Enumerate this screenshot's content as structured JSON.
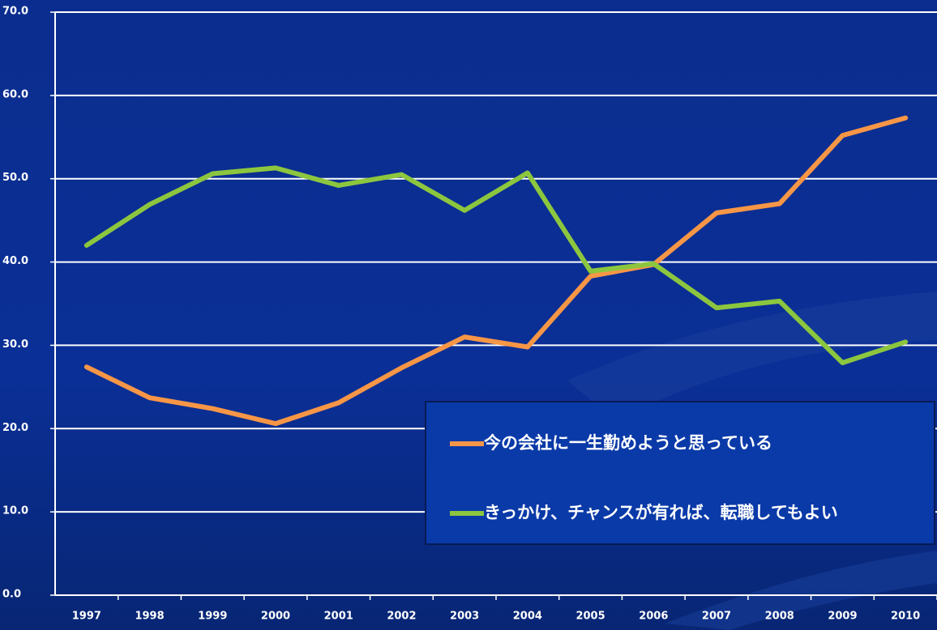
{
  "chart_data": {
    "type": "line",
    "categories": [
      "1997",
      "1998",
      "1999",
      "2000",
      "2001",
      "2002",
      "2003",
      "2004",
      "2005",
      "2006",
      "2007",
      "2008",
      "2009",
      "2010"
    ],
    "series": [
      {
        "name": "今の会社に一生勤めようと思っている",
        "color": "#f79646",
        "values": [
          27.4,
          23.7,
          22.4,
          20.6,
          23.1,
          27.3,
          31.0,
          29.8,
          38.3,
          39.7,
          45.9,
          47.0,
          55.2,
          57.3
        ]
      },
      {
        "name": "きっかけ、チャンスが有れば、転職してもよい",
        "color": "#8cc63f",
        "values": [
          42.0,
          46.9,
          50.6,
          51.3,
          49.2,
          50.5,
          46.2,
          50.7,
          38.9,
          39.8,
          34.5,
          35.3,
          27.9,
          30.4
        ]
      }
    ],
    "ylim": [
      0,
      70
    ],
    "yticks": [
      {
        "value": 0,
        "label": "0.0"
      },
      {
        "value": 10,
        "label": "10.0"
      },
      {
        "value": 20,
        "label": "20.0"
      },
      {
        "value": 30,
        "label": "30.0"
      },
      {
        "value": 40,
        "label": "40.0"
      },
      {
        "value": 50,
        "label": "50.0"
      },
      {
        "value": 60,
        "label": "60.0"
      },
      {
        "value": 70,
        "label": "70.0"
      }
    ],
    "grid": true,
    "legend": "lower right"
  }
}
